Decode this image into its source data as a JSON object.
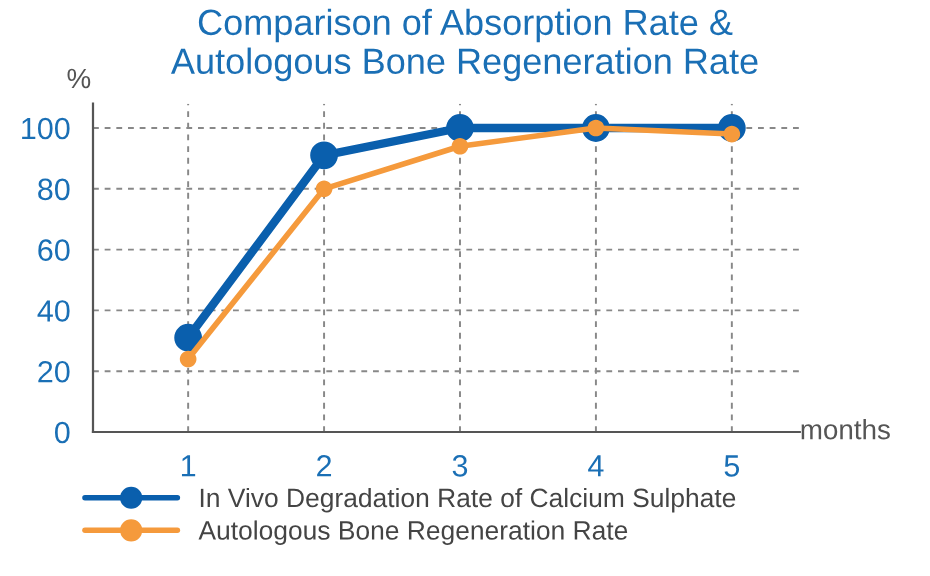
{
  "chart_data": {
    "type": "line",
    "title": "Comparison of Absorption Rate &\nAutologous Bone Regeneration Rate",
    "xlabel": "months",
    "ylabel": "%",
    "x": [
      1,
      2,
      3,
      4,
      5
    ],
    "series": [
      {
        "name": "In Vivo Degradation Rate of Calcium Sulphate",
        "color": "#0a5fad",
        "values": [
          31,
          91,
          100,
          100,
          100
        ]
      },
      {
        "name": "Autologous Bone Regeneration Rate",
        "color": "#f59a3c",
        "values": [
          24,
          80,
          94,
          100,
          98
        ]
      }
    ],
    "xlim": [
      0.3,
      5.5
    ],
    "ylim": [
      0,
      108
    ],
    "xticks": [
      1,
      2,
      3,
      4,
      5
    ],
    "yticks": [
      0,
      20,
      40,
      60,
      80,
      100
    ],
    "grid": true,
    "legend": "bottom",
    "marker": "circle",
    "line_style": "solid"
  }
}
